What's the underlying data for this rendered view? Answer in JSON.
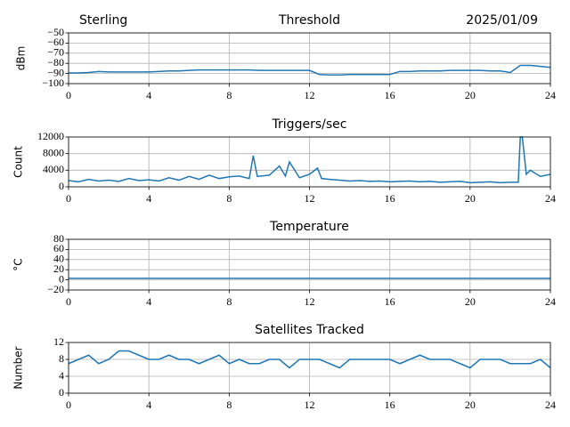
{
  "chart_data": [
    {
      "type": "line",
      "location": "Sterling",
      "title": "Threshold",
      "date": "2025/01/09",
      "ylabel": "dBm",
      "color": "#1f77b4",
      "grid": true,
      "xlim": [
        0,
        24
      ],
      "xticks": [
        0,
        4,
        8,
        12,
        16,
        20,
        24
      ],
      "ylim": [
        -100,
        -50
      ],
      "yticks": [
        {
          "value": -50,
          "label": "−50"
        },
        {
          "value": -60,
          "label": "−60"
        },
        {
          "value": -70,
          "label": "−70"
        },
        {
          "value": -80,
          "label": "−80"
        },
        {
          "value": -90,
          "label": "−90"
        },
        {
          "value": -100,
          "label": "−100"
        }
      ],
      "x": [
        0,
        0.5,
        1,
        1.5,
        2,
        2.5,
        3,
        3.5,
        4,
        4.5,
        5,
        5.5,
        6,
        6.5,
        7,
        7.5,
        8,
        8.5,
        9,
        9.5,
        10,
        10.5,
        11,
        11.5,
        12,
        12.5,
        13,
        13.5,
        14,
        14.5,
        15,
        15.5,
        16,
        16.5,
        17,
        17.5,
        18,
        18.5,
        19,
        19.5,
        20,
        20.5,
        21,
        21.5,
        22,
        22.5,
        23,
        23.5,
        24
      ],
      "values": [
        -89.5,
        -89.5,
        -89,
        -88,
        -88.5,
        -88.5,
        -88.5,
        -88.5,
        -88.5,
        -88,
        -87.5,
        -87.5,
        -87,
        -86.5,
        -86.5,
        -86.5,
        -86.5,
        -86.5,
        -86.5,
        -87,
        -87,
        -87,
        -87,
        -87,
        -87,
        -91,
        -91.5,
        -91.5,
        -91,
        -91,
        -91,
        -91,
        -91,
        -88,
        -88,
        -87.5,
        -87.5,
        -87.5,
        -87,
        -87,
        -87,
        -87,
        -87.5,
        -87.5,
        -89,
        -82,
        -82,
        -83,
        -84
      ]
    },
    {
      "type": "line",
      "title": "Triggers/sec",
      "ylabel": "Count",
      "color": "#1f77b4",
      "grid": true,
      "xlim": [
        0,
        24
      ],
      "xticks": [
        0,
        4,
        8,
        12,
        16,
        20,
        24
      ],
      "ylim": [
        0,
        12000
      ],
      "yticks": [
        0,
        4000,
        8000,
        12000
      ],
      "x": [
        0,
        0.5,
        1,
        1.5,
        2,
        2.5,
        3,
        3.5,
        4,
        4.5,
        5,
        5.5,
        6,
        6.5,
        7,
        7.5,
        8,
        8.5,
        9,
        9.2,
        9.4,
        10,
        10.5,
        10.8,
        11,
        11.5,
        12,
        12.4,
        12.6,
        13,
        13.5,
        14,
        14.5,
        15,
        15.5,
        16,
        16.5,
        17,
        17.5,
        18,
        18.5,
        19,
        19.5,
        20,
        20.5,
        21,
        21.5,
        22,
        22.4,
        22.5,
        22.6,
        22.8,
        23,
        23.5,
        24
      ],
      "values": [
        1500,
        1200,
        1800,
        1400,
        1600,
        1300,
        2000,
        1500,
        1700,
        1400,
        2200,
        1600,
        2500,
        1800,
        2800,
        2000,
        2400,
        2600,
        2000,
        7500,
        2500,
        2800,
        5000,
        2600,
        6000,
        2200,
        3000,
        4500,
        2000,
        1800,
        1600,
        1400,
        1500,
        1300,
        1400,
        1200,
        1300,
        1400,
        1200,
        1300,
        1100,
        1200,
        1300,
        1000,
        1100,
        1200,
        1000,
        1100,
        1100,
        12000,
        12000,
        3000,
        4000,
        2500,
        3000
      ]
    },
    {
      "type": "line",
      "title": "Temperature",
      "ylabel": "°C",
      "color": "#1f77b4",
      "grid": true,
      "xlim": [
        0,
        24
      ],
      "xticks": [
        0,
        4,
        8,
        12,
        16,
        20,
        24
      ],
      "ylim": [
        -20,
        80
      ],
      "yticks": [
        {
          "value": -20,
          "label": "−20"
        },
        0,
        20,
        40,
        60,
        80
      ],
      "x": [
        0,
        24
      ],
      "values": [
        3,
        3
      ]
    },
    {
      "type": "line",
      "title": "Satellites Tracked",
      "ylabel": "Number",
      "color": "#1f77b4",
      "grid": true,
      "xlim": [
        0,
        24
      ],
      "xticks": [
        0,
        4,
        8,
        12,
        16,
        20,
        24
      ],
      "ylim": [
        0,
        12
      ],
      "yticks": [
        0,
        4,
        8,
        12
      ],
      "x": [
        0,
        0.5,
        1,
        1.5,
        2,
        2.5,
        3,
        3.5,
        4,
        4.5,
        5,
        5.5,
        6,
        6.5,
        7,
        7.5,
        8,
        8.5,
        9,
        9.5,
        10,
        10.5,
        11,
        11.5,
        12,
        12.5,
        13,
        13.5,
        14,
        14.5,
        15,
        15.5,
        16,
        16.5,
        17,
        17.5,
        18,
        18.5,
        19,
        19.5,
        20,
        20.5,
        21,
        21.5,
        22,
        22.5,
        23,
        23.5,
        24
      ],
      "values": [
        7,
        8,
        9,
        7,
        8,
        10,
        10,
        9,
        8,
        8,
        9,
        8,
        8,
        7,
        8,
        9,
        7,
        8,
        7,
        7,
        8,
        8,
        6,
        8,
        8,
        8,
        7,
        6,
        8,
        8,
        8,
        8,
        8,
        7,
        8,
        9,
        8,
        8,
        8,
        7,
        6,
        8,
        8,
        8,
        7,
        7,
        7,
        8,
        6
      ]
    }
  ]
}
